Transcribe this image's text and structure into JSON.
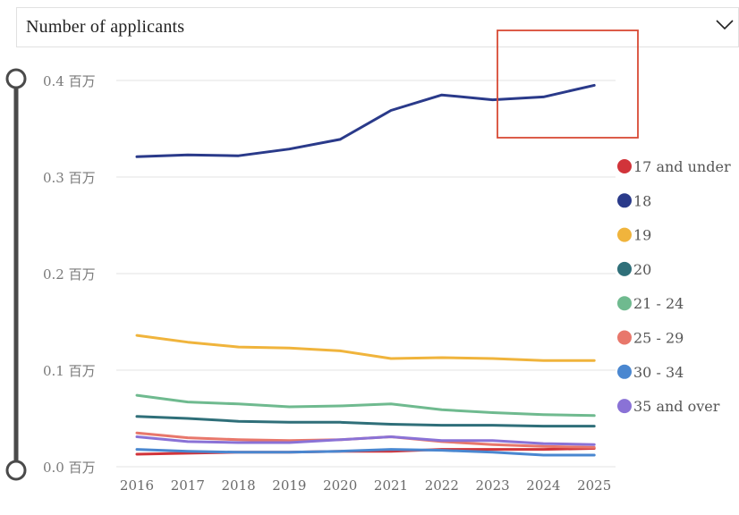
{
  "header": {
    "title": "Number of applicants"
  },
  "y_suffix": "百万",
  "highlight_color": "#d84a35",
  "chart_data": {
    "type": "line",
    "title": "Number of applicants",
    "x": [
      "2016",
      "2017",
      "2018",
      "2019",
      "2020",
      "2021",
      "2022",
      "2023",
      "2024",
      "2025"
    ],
    "y_ticks": [
      "0.0 百万",
      "0.1 百万",
      "0.2 百万",
      "0.3 百万",
      "0.4 百万"
    ],
    "ylim": [
      0,
      0.4
    ],
    "grid": true,
    "legend_position": "right",
    "series": [
      {
        "name": "17 and under",
        "color": "#d1343a",
        "values": [
          0.013,
          0.014,
          0.015,
          0.015,
          0.016,
          0.016,
          0.018,
          0.018,
          0.018,
          0.019
        ]
      },
      {
        "name": "18",
        "color": "#2a3a8a",
        "values": [
          0.321,
          0.323,
          0.322,
          0.329,
          0.339,
          0.369,
          0.385,
          0.38,
          0.383,
          0.395
        ]
      },
      {
        "name": "19",
        "color": "#f0b43c",
        "values": [
          0.136,
          0.129,
          0.124,
          0.123,
          0.12,
          0.112,
          0.113,
          0.112,
          0.11,
          0.11
        ]
      },
      {
        "name": "20",
        "color": "#2f6f79",
        "values": [
          0.052,
          0.05,
          0.047,
          0.046,
          0.046,
          0.044,
          0.043,
          0.043,
          0.042,
          0.042
        ]
      },
      {
        "name": "21 - 24",
        "color": "#6fba8f",
        "values": [
          0.074,
          0.067,
          0.065,
          0.062,
          0.063,
          0.065,
          0.059,
          0.056,
          0.054,
          0.053
        ]
      },
      {
        "name": "25 - 29",
        "color": "#e8776b",
        "values": [
          0.035,
          0.03,
          0.028,
          0.027,
          0.028,
          0.031,
          0.026,
          0.023,
          0.021,
          0.02
        ]
      },
      {
        "name": "30 - 34",
        "color": "#4a87d0",
        "values": [
          0.018,
          0.016,
          0.015,
          0.015,
          0.016,
          0.018,
          0.017,
          0.015,
          0.012,
          0.012
        ]
      },
      {
        "name": "35 and over",
        "color": "#8a72d6",
        "values": [
          0.031,
          0.026,
          0.025,
          0.025,
          0.028,
          0.031,
          0.027,
          0.027,
          0.024,
          0.023
        ]
      }
    ]
  }
}
